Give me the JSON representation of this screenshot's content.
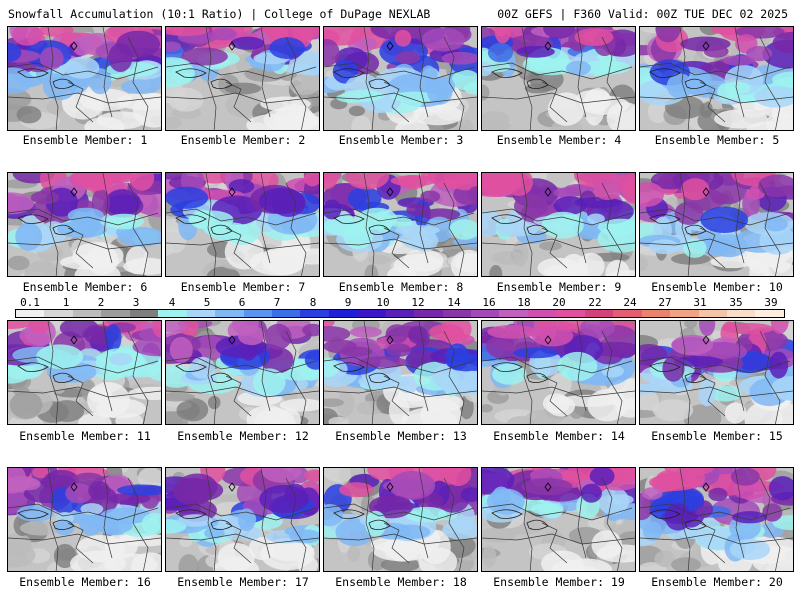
{
  "header": {
    "left": "Snowfall Accumulation (10:1 Ratio) | College of DuPage NEXLAB",
    "right": "00Z GEFS | F360 Valid: 00Z TUE DEC 02 2025"
  },
  "colors": {
    "border": "#000000",
    "state_lines": "#3a3a3a",
    "background": "#ffffff"
  },
  "legend": {
    "labels": [
      "0.1",
      "1",
      "2",
      "3",
      "4",
      "5",
      "6",
      "7",
      "8",
      "9",
      "10",
      "12",
      "14",
      "16",
      "18",
      "20",
      "22",
      "24",
      "27",
      "31",
      "35",
      "39"
    ],
    "swatches": [
      "#f0f0f0",
      "#d6d6d6",
      "#bcbcbc",
      "#9c9c9c",
      "#7e7e7e",
      "#9ef2ee",
      "#a9d6f8",
      "#80b8f4",
      "#5a94ef",
      "#3c6ee8",
      "#2a3fe0",
      "#1f1fd8",
      "#3d16c8",
      "#5a20b8",
      "#7628a8",
      "#8a36a8",
      "#a44ab8",
      "#c060c0",
      "#d050b0",
      "#e050a0",
      "#d2437a",
      "#e05f72",
      "#e8836e",
      "#f0a484",
      "#f4c4a8",
      "#f8ddc8",
      "#fceee0"
    ]
  },
  "panels": [
    {
      "caption": "Ensemble Member: 1",
      "member": 1,
      "coverage": 0.58
    },
    {
      "caption": "Ensemble Member: 2",
      "member": 2,
      "coverage": 0.45
    },
    {
      "caption": "Ensemble Member: 3",
      "member": 3,
      "coverage": 0.7
    },
    {
      "caption": "Ensemble Member: 4",
      "member": 4,
      "coverage": 0.4
    },
    {
      "caption": "Ensemble Member: 5",
      "member": 5,
      "coverage": 0.68
    },
    {
      "caption": "Ensemble Member: 6",
      "member": 6,
      "coverage": 0.62
    },
    {
      "caption": "Ensemble Member: 7",
      "member": 7,
      "coverage": 0.55
    },
    {
      "caption": "Ensemble Member: 8",
      "member": 8,
      "coverage": 0.66
    },
    {
      "caption": "Ensemble Member: 9",
      "member": 9,
      "coverage": 0.64
    },
    {
      "caption": "Ensemble Member: 10",
      "member": 10,
      "coverage": 0.72
    },
    {
      "caption": "Ensemble Member: 11",
      "member": 11,
      "coverage": 0.5
    },
    {
      "caption": "Ensemble Member: 12",
      "member": 12,
      "coverage": 0.6
    },
    {
      "caption": "Ensemble Member: 13",
      "member": 13,
      "coverage": 0.65
    },
    {
      "caption": "Ensemble Member: 14",
      "member": 14,
      "coverage": 0.52
    },
    {
      "caption": "Ensemble Member: 15",
      "member": 15,
      "coverage": 0.7
    },
    {
      "caption": "Ensemble Member: 16",
      "member": 16,
      "coverage": 0.57
    },
    {
      "caption": "Ensemble Member: 17",
      "member": 17,
      "coverage": 0.66
    },
    {
      "caption": "Ensemble Member: 18",
      "member": 18,
      "coverage": 0.63
    },
    {
      "caption": "Ensemble Member: 19",
      "member": 19,
      "coverage": 0.42
    },
    {
      "caption": "Ensemble Member: 20",
      "member": 20,
      "coverage": 0.8
    }
  ]
}
